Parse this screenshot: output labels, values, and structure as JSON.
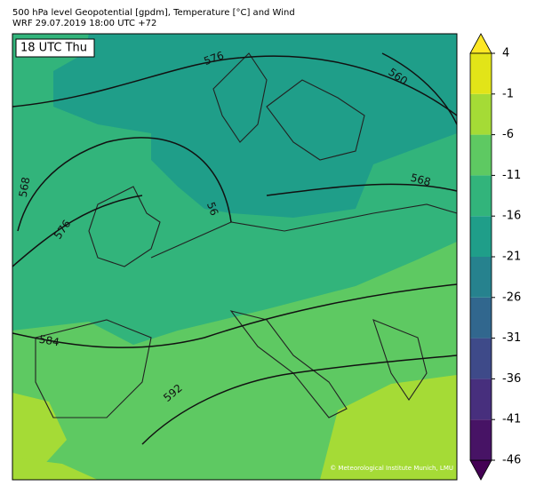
{
  "header": {
    "title": "500 hPa level Geopotential [gpdm], Temperature [°C] and Wind",
    "subtitle": "WRF 29.07.2019 18:00 UTC +72"
  },
  "panel_label": "18 UTC Thu",
  "contour_labels": [
    "576",
    "560",
    "568",
    "568",
    "576",
    "56",
    "584",
    "592"
  ],
  "copyright": "© Meteorological Institute Munich, LMU",
  "colorbar": {
    "ticks": [
      -46,
      -41,
      -36,
      -31,
      -26,
      -21,
      -16,
      -11,
      -6,
      -1,
      4
    ],
    "colors": [
      "#471365",
      "#472f7d",
      "#3e4a89",
      "#31678e",
      "#26828e",
      "#1f9e89",
      "#32b47b",
      "#5ec962",
      "#a5db36",
      "#e2e418"
    ],
    "extend_low": "#440154",
    "extend_high": "#fde725"
  }
}
